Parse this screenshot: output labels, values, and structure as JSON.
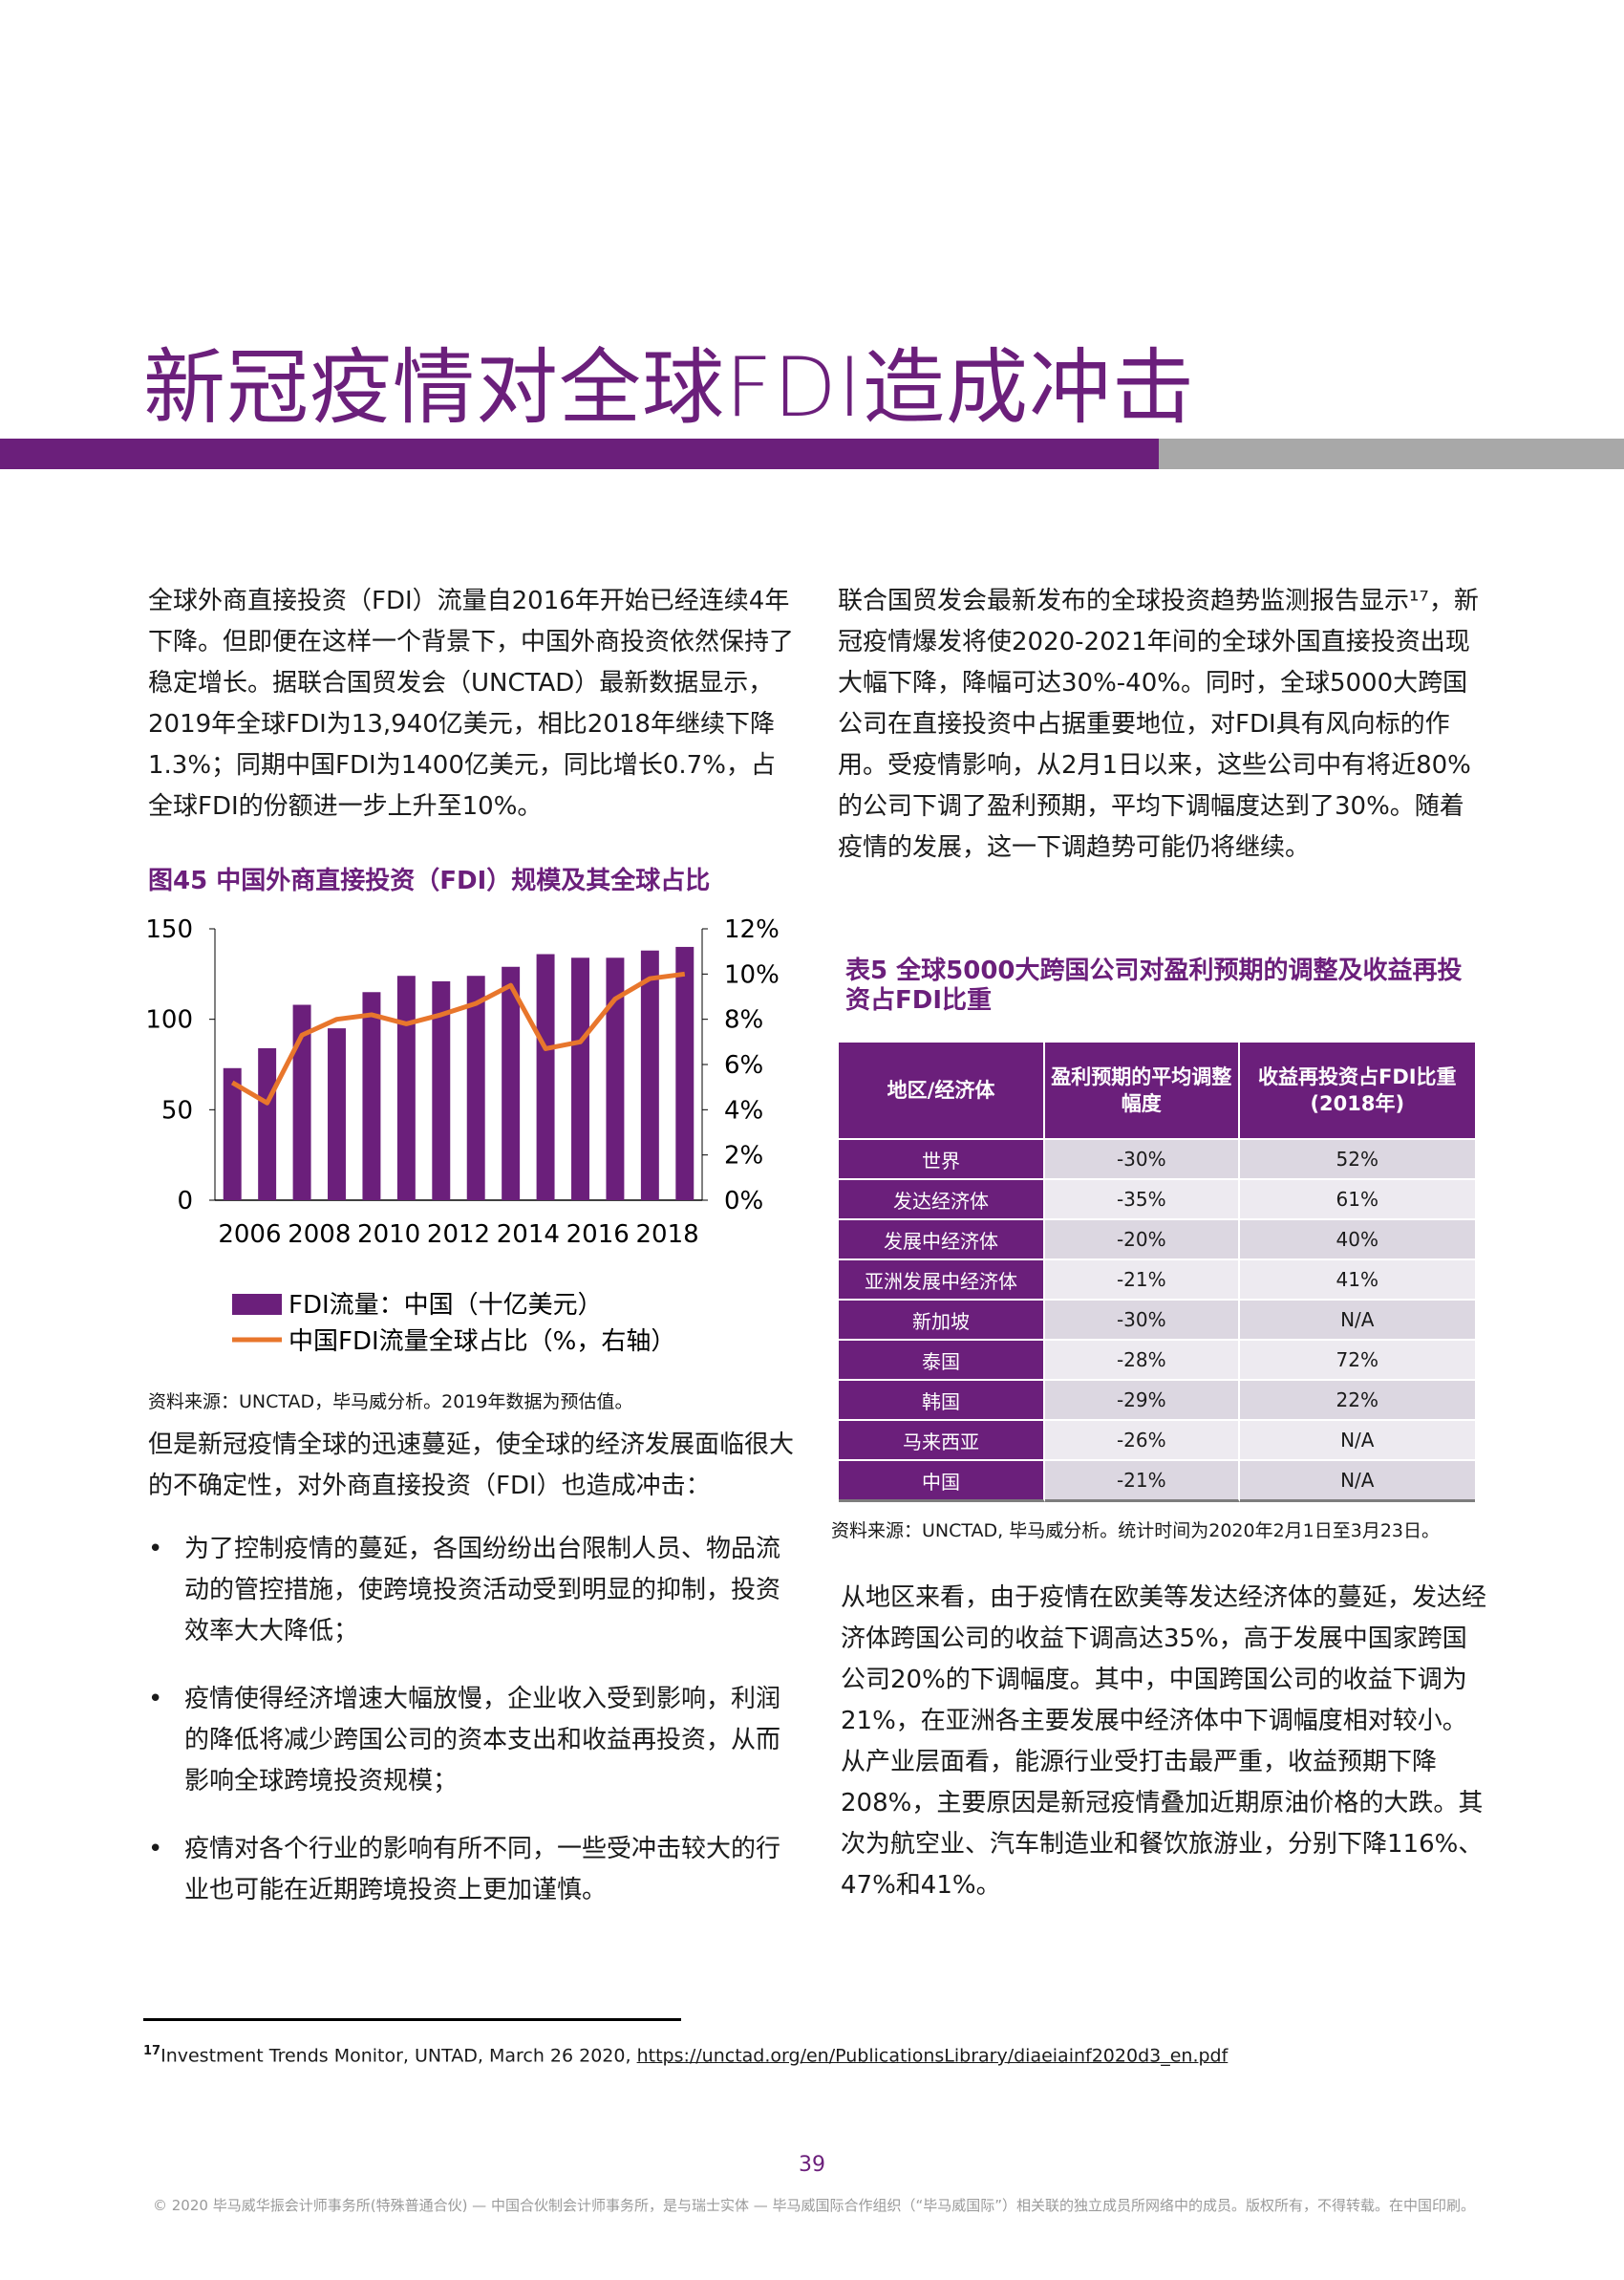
{
  "page_title": "新冠疫情对全球FDI造成冲击",
  "left_para1": "全球外商直接投资（FDI）流量自2016年开始已经连续4年下降。但即便在这样一个背景下，中国外商投资依然保持了稳定增长。据联合国贸发会（UNCTAD）最新数据显示，2019年全球FDI为13,940亿美元，相比2018年继续下降1.3%；同期中国FDI为1400亿美元，同比增长0.7%，占全球FDI的份额进一步上升至10%。",
  "figure_title": "图45 中国外商直接投资（FDI）规模及其全球占比",
  "chart_data": {
    "type": "bar",
    "title": "图45 中国外商直接投资（FDI）规模及其全球占比",
    "x": [
      2006,
      2007,
      2008,
      2009,
      2010,
      2011,
      2012,
      2013,
      2014,
      2015,
      2016,
      2017,
      2018,
      2019
    ],
    "x_tick_labels": [
      "2006",
      "2008",
      "2010",
      "2012",
      "2014",
      "2016",
      "2018"
    ],
    "y_left_ticks": [
      "0",
      "50",
      "100",
      "150"
    ],
    "y_right_ticks": [
      "0%",
      "2%",
      "4%",
      "6%",
      "8%",
      "10%",
      "12%"
    ],
    "ylim_left": [
      0,
      150
    ],
    "ylim_right": [
      0,
      12
    ],
    "series": [
      {
        "name": "FDI流量：中国（十亿美元）",
        "kind": "bar",
        "axis": "left",
        "color": "#6b1f7b",
        "values": [
          73,
          84,
          108,
          95,
          115,
          124,
          121,
          124,
          129,
          136,
          134,
          134,
          138,
          140
        ]
      },
      {
        "name": "中国FDI流量全球占比（%，右轴）",
        "kind": "line",
        "axis": "right",
        "color": "#e8762c",
        "values": [
          5.2,
          4.3,
          7.3,
          8.0,
          8.2,
          7.8,
          8.2,
          8.7,
          9.5,
          6.7,
          7.0,
          8.9,
          9.8,
          10.0
        ]
      }
    ],
    "legend_position": "bottom"
  },
  "chart_source": "资料来源：UNCTAD，毕马威分析。2019年数据为预估值。",
  "left_para2": "但是新冠疫情全球的迅速蔓延，使全球的经济发展面临很大的不确定性，对外商直接投资（FDI）也造成冲击：",
  "bullet_symbol": "•",
  "bullets": [
    "为了控制疫情的蔓延，各国纷纷出台限制人员、物品流动的管控措施，使跨境投资活动受到明显的抑制，投资效率大大降低；",
    "疫情使得经济增速大幅放慢，企业收入受到影响，利润的降低将减少跨国公司的资本支出和收益再投资，从而影响全球跨境投资规模；",
    "疫情对各个行业的影响有所不同，一些受冲击较大的行业也可能在近期跨境投资上更加谨慎。"
  ],
  "right_para1": "联合国贸发会最新发布的全球投资趋势监测报告显示¹⁷，新冠疫情爆发将使2020-2021年间的全球外国直接投资出现大幅下降，降幅可达30%-40%。同时，全球5000大跨国公司在直接投资中占据重要地位，对FDI具有风向标的作用。受疫情影响，从2月1日以来，这些公司中有将近80%的公司下调了盈利预期，平均下调幅度达到了30%。随着疫情的发展，这一下调趋势可能仍将继续。",
  "table_title": "表5 全球5000大跨国公司对盈利预期的调整及收益再投资占FDI比重",
  "table": {
    "headers": [
      "地区/经济体",
      "盈利预期的平均调整幅度",
      "收益再投资占FDI比重(2018年)"
    ],
    "rows": [
      [
        "世界",
        "-30%",
        "52%"
      ],
      [
        "发达经济体",
        "-35%",
        "61%"
      ],
      [
        "发展中经济体",
        "-20%",
        "40%"
      ],
      [
        "亚洲发展中经济体",
        "-21%",
        "41%"
      ],
      [
        "新加坡",
        "-30%",
        "N/A"
      ],
      [
        "泰国",
        "-28%",
        "72%"
      ],
      [
        "韩国",
        "-29%",
        "22%"
      ],
      [
        "马来西亚",
        "-26%",
        "N/A"
      ],
      [
        "中国",
        "-21%",
        "N/A"
      ]
    ]
  },
  "table_source": "资料来源：UNCTAD, 毕马威分析。统计时间为2020年2月1日至3月23日。",
  "right_para2": "从地区来看，由于疫情在欧美等发达经济体的蔓延，发达经济体跨国公司的收益下调高达35%，高于发展中国家跨国公司20%的下调幅度。其中，中国跨国公司的收益下调为21%，在亚洲各主要发展中经济体中下调幅度相对较小。从产业层面看，能源行业受打击最严重，收益预期下降208%，主要原因是新冠疫情叠加近期原油价格的大跌。其次为航空业、汽车制造业和餐饮旅游业，分别下降116%、47%和41%。",
  "footnote": {
    "number": "17",
    "text": "Investment Trends Monitor, UNTAD, March 26 2020,",
    "url": "https://unctad.org/en/PublicationsLibrary/diaeiainf2020d3_en.pdf"
  },
  "page_number": "39",
  "copyright": "© 2020 毕马威华振会计师事务所(特殊普通合伙) — 中国合伙制会计师事务所，是与瑞士实体 — 毕马威国际合作组织（“毕马威国际”）相关联的独立成员所网络中的成员。版权所有，不得转载。在中国印刷。",
  "colors": {
    "brand_purple": "#6b1f7b",
    "line_orange": "#e8762c",
    "gray_band": "#a8a8a8"
  }
}
